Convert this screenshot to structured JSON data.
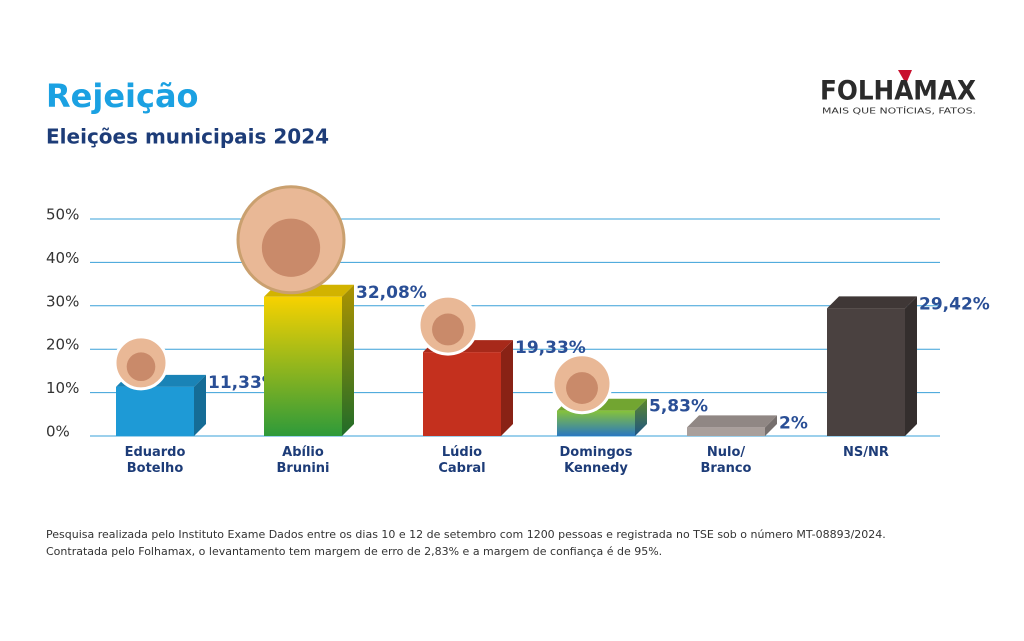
{
  "chart_data": {
    "type": "bar",
    "title": "Rejeição",
    "subtitle": "Eleições municipais 2024",
    "logo": {
      "name": "FOLHAMAX",
      "tagline": "MAIS QUE NOTÍCIAS, FATOS."
    },
    "categories": [
      "Eduardo Botelho",
      "Abílio Brunini",
      "Lúdio Cabral",
      "Domingos Kennedy",
      "Nulo/ Branco",
      "NS/NR"
    ],
    "values": [
      11.33,
      32.08,
      19.33,
      5.83,
      2,
      29.42
    ],
    "value_labels": [
      "11,33%",
      "32,08%",
      "19,33%",
      "5,83%",
      "2%",
      "29,42%"
    ],
    "colors": [
      "#1e9ad6",
      [
        "#f7d200",
        "#2e9a3a"
      ],
      "#c4301e",
      [
        "#86c23a",
        "#2a78c0"
      ],
      "#a99f9b",
      "#4a4140"
    ],
    "ylim": [
      0,
      50
    ],
    "yticks": [
      {
        "value": 0,
        "label": "0%"
      },
      {
        "value": 10,
        "label": "10%"
      },
      {
        "value": 20,
        "label": "20%"
      },
      {
        "value": 30,
        "label": "30%"
      },
      {
        "value": 40,
        "label": "40%"
      },
      {
        "value": 50,
        "label": "50%"
      }
    ],
    "grid": true,
    "footnote": [
      "Pesquisa realizada pelo Instituto Exame Dados entre os dias 10 e 12 de setembro com 1200 pessoas e registrada no TSE sob o número MT-08893/2024.",
      "Contratada pelo Folhamax, o levantamento tem margem de erro de 2,83% e a margem de confiança é de 95%."
    ]
  }
}
